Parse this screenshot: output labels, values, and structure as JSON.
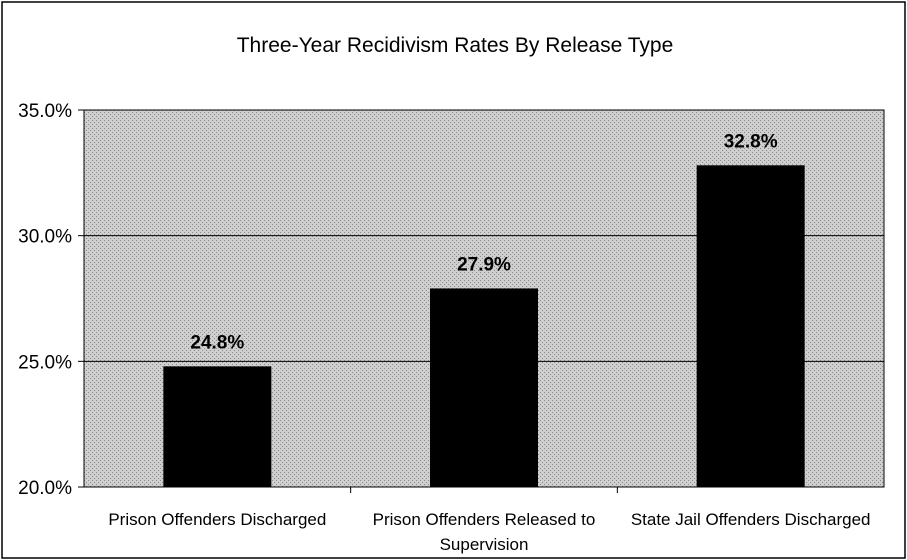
{
  "chart_data": {
    "type": "bar",
    "title": "Three-Year Recidivism Rates By Release Type",
    "xlabel": "",
    "ylabel": "",
    "categories": [
      [
        "Prison Offenders Discharged"
      ],
      [
        "Prison Offenders Released to",
        "Supervision"
      ],
      [
        "State Jail Offenders Discharged"
      ]
    ],
    "values": [
      24.8,
      27.9,
      32.8
    ],
    "data_labels": [
      "24.8%",
      "27.9%",
      "32.8%"
    ],
    "ylim": [
      20,
      35
    ],
    "y_ticks": [
      20,
      25,
      30,
      35
    ],
    "y_tick_labels": [
      "20.0%",
      "25.0%",
      "30.0%",
      "35.0%"
    ],
    "grid": true,
    "legend": "none",
    "colors": {
      "bar": "#000000",
      "plot_background": "#c4c4c4",
      "gridline": "#000000",
      "frame": "#000000"
    }
  }
}
